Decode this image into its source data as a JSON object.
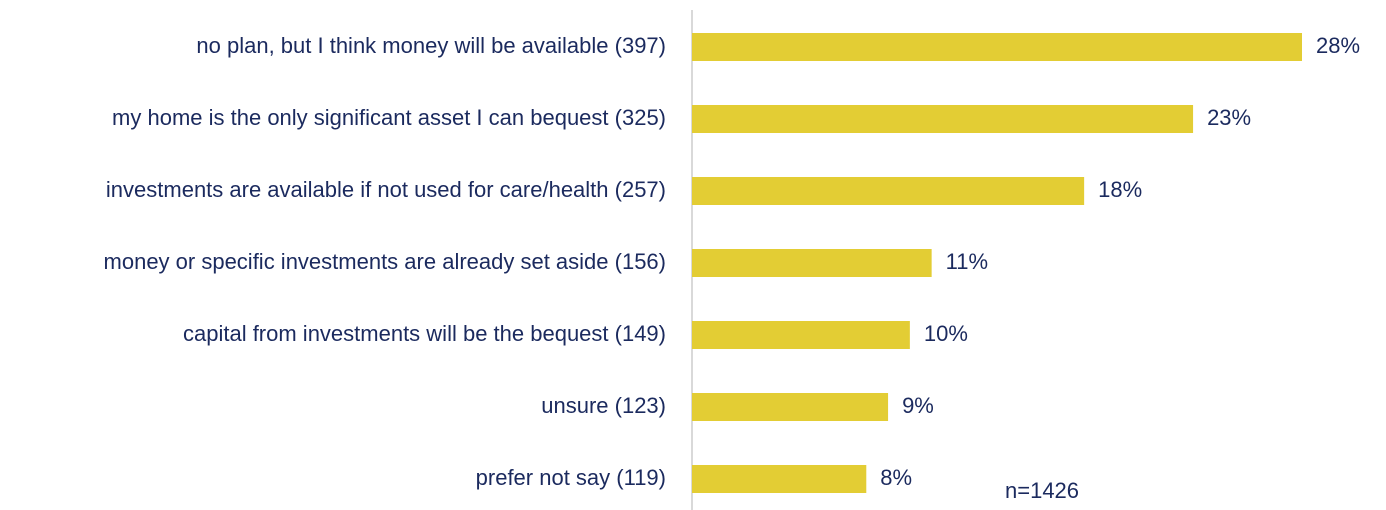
{
  "chart_data": {
    "type": "barh",
    "categories": [
      "no plan, but I think money will be available (397)",
      "my home is the only significant asset I can bequest (325)",
      "investments are available if not used for care/health (257)",
      "money or specific investments are already set aside (156)",
      "capital from investments will be the bequest (149)",
      "unsure (123)",
      "prefer not say (119)"
    ],
    "values": [
      28,
      23,
      18,
      11,
      10,
      9,
      8
    ],
    "value_labels": [
      "28%",
      "23%",
      "18%",
      "11%",
      "10%",
      "9%",
      "8%"
    ],
    "color": "#e3cd34",
    "annotation": "n=1426"
  }
}
